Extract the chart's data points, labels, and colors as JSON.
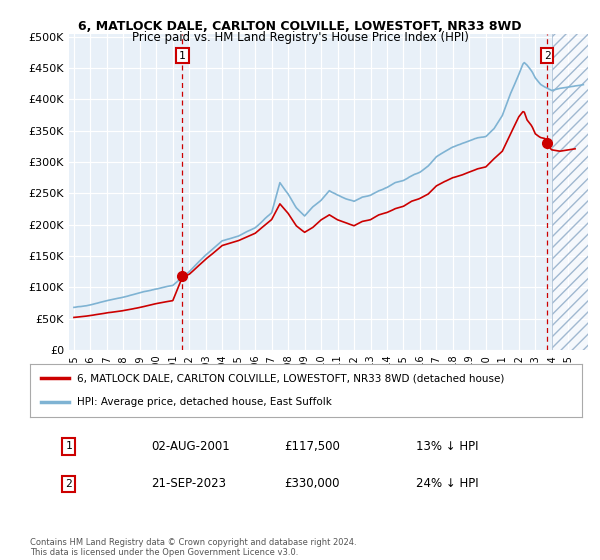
{
  "title": "6, MATLOCK DALE, CARLTON COLVILLE, LOWESTOFT, NR33 8WD",
  "subtitle": "Price paid vs. HM Land Registry's House Price Index (HPI)",
  "legend_line1": "6, MATLOCK DALE, CARLTON COLVILLE, LOWESTOFT, NR33 8WD (detached house)",
  "legend_line2": "HPI: Average price, detached house, East Suffolk",
  "annotation1_label": "1",
  "annotation1_date": "02-AUG-2001",
  "annotation1_price": "£117,500",
  "annotation1_hpi": "13% ↓ HPI",
  "annotation2_label": "2",
  "annotation2_date": "21-SEP-2023",
  "annotation2_price": "£330,000",
  "annotation2_hpi": "24% ↓ HPI",
  "footnote": "Contains HM Land Registry data © Crown copyright and database right 2024.\nThis data is licensed under the Open Government Licence v3.0.",
  "hpi_color": "#7fb3d3",
  "price_color": "#cc0000",
  "vline_color": "#cc0000",
  "plot_bg_color": "#e8f0f8",
  "fig_bg_color": "#ffffff",
  "hatch_color": "#a0b8d0",
  "ylim": [
    0,
    500000
  ],
  "yticks": [
    0,
    50000,
    100000,
    150000,
    200000,
    250000,
    300000,
    350000,
    400000,
    450000,
    500000
  ],
  "sale1_year": 2001.58,
  "sale1_price": 117500,
  "sale2_year": 2023.72,
  "sale2_price": 330000,
  "xmin": 1994.7,
  "xmax": 2026.2
}
